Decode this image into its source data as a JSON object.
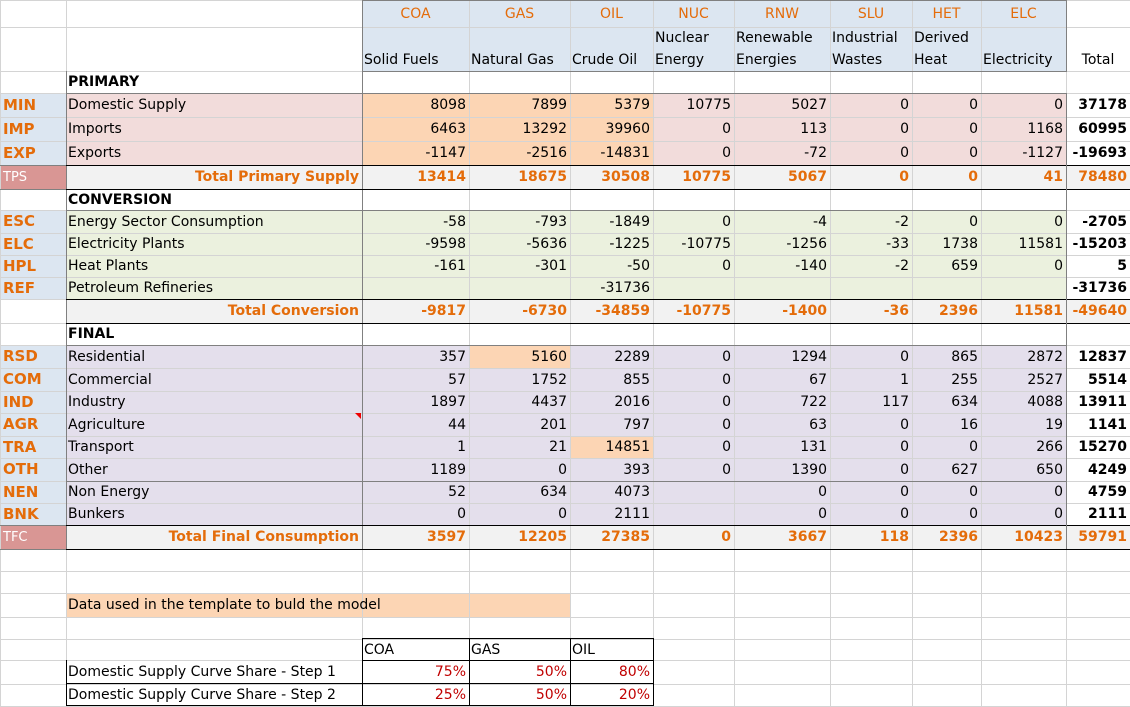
{
  "colors": {
    "header_blue": "#dce6f1",
    "primary_pink": "#f2dcdb",
    "conversion_green": "#ebf1de",
    "final_purple": "#e4dfec",
    "highlight_orange": "#fcd5b4",
    "total_row_gray": "#f2f2f2",
    "code_orange": "#e46c0a",
    "total_code_red": "#d99694"
  },
  "header": {
    "codes": [
      "COA",
      "GAS",
      "OIL",
      "NUC",
      "RNW",
      "SLU",
      "HET",
      "ELC"
    ],
    "names_line1": [
      "",
      "",
      "",
      "Nuclear",
      "Renewable",
      "Industrial",
      "Derived",
      ""
    ],
    "names_line2": [
      "Solid Fuels",
      "Natural Gas",
      "Crude Oil",
      "Energy",
      "Energies",
      "Wastes",
      "Heat",
      "Electricity"
    ],
    "total": "Total"
  },
  "sections": {
    "primary": "PRIMARY",
    "conversion": "CONVERSION",
    "final": "FINAL"
  },
  "rows": {
    "min": {
      "code": "MIN",
      "label": "Domestic Supply",
      "values": [
        "8098",
        "7899",
        "5379",
        "10775",
        "5027",
        "0",
        "0",
        "0"
      ],
      "total": "37178"
    },
    "imp": {
      "code": "IMP",
      "label": "Imports",
      "values": [
        "6463",
        "13292",
        "39960",
        "0",
        "113",
        "0",
        "0",
        "1168"
      ],
      "total": "60995"
    },
    "exp": {
      "code": "EXP",
      "label": "Exports",
      "values": [
        "-1147",
        "-2516",
        "-14831",
        "0",
        "-72",
        "0",
        "0",
        "-1127"
      ],
      "total": "-19693"
    },
    "tps": {
      "code": "TPS",
      "label": "Total Primary Supply",
      "values": [
        "13414",
        "18675",
        "30508",
        "10775",
        "5067",
        "0",
        "0",
        "41"
      ],
      "total": "78480"
    },
    "esc": {
      "code": "ESC",
      "label": "Energy Sector Consumption",
      "values": [
        "-58",
        "-793",
        "-1849",
        "0",
        "-4",
        "-2",
        "0",
        "0"
      ],
      "total": "-2705"
    },
    "elc": {
      "code": "ELC",
      "label": "Electricity Plants",
      "values": [
        "-9598",
        "-5636",
        "-1225",
        "-10775",
        "-1256",
        "-33",
        "1738",
        "11581"
      ],
      "total": "-15203"
    },
    "hpl": {
      "code": "HPL",
      "label": "Heat Plants",
      "values": [
        "-161",
        "-301",
        "-50",
        "0",
        "-140",
        "-2",
        "659",
        "0"
      ],
      "total": "5"
    },
    "ref": {
      "code": "REF",
      "label": "Petroleum Refineries",
      "values": [
        "",
        "",
        "-31736",
        "",
        "",
        "",
        "",
        ""
      ],
      "total": "-31736"
    },
    "tcv": {
      "code": "",
      "label": "Total Conversion",
      "values": [
        "-9817",
        "-6730",
        "-34859",
        "-10775",
        "-1400",
        "-36",
        "2396",
        "11581"
      ],
      "total": "-49640"
    },
    "rsd": {
      "code": "RSD",
      "label": "Residential",
      "values": [
        "357",
        "5160",
        "2289",
        "0",
        "1294",
        "0",
        "865",
        "2872"
      ],
      "total": "12837"
    },
    "com": {
      "code": "COM",
      "label": "Commercial",
      "values": [
        "57",
        "1752",
        "855",
        "0",
        "67",
        "1",
        "255",
        "2527"
      ],
      "total": "5514"
    },
    "ind": {
      "code": "IND",
      "label": "Industry",
      "values": [
        "1897",
        "4437",
        "2016",
        "0",
        "722",
        "117",
        "634",
        "4088"
      ],
      "total": "13911"
    },
    "agr": {
      "code": "AGR",
      "label": "Agriculture",
      "values": [
        "44",
        "201",
        "797",
        "0",
        "63",
        "0",
        "16",
        "19"
      ],
      "total": "1141"
    },
    "tra": {
      "code": "TRA",
      "label": "Transport",
      "values": [
        "1",
        "21",
        "14851",
        "0",
        "131",
        "0",
        "0",
        "266"
      ],
      "total": "15270"
    },
    "oth": {
      "code": "OTH",
      "label": "Other",
      "values": [
        "1189",
        "0",
        "393",
        "0",
        "1390",
        "0",
        "627",
        "650"
      ],
      "total": "4249"
    },
    "nen": {
      "code": "NEN",
      "label": "Non Energy",
      "values": [
        "52",
        "634",
        "4073",
        "",
        "0",
        "0",
        "0",
        "0"
      ],
      "total": "4759"
    },
    "bnk": {
      "code": "BNK",
      "label": "Bunkers",
      "values": [
        "0",
        "0",
        "2111",
        "",
        "0",
        "0",
        "0",
        "0"
      ],
      "total": "2111"
    },
    "tfc": {
      "code": "TFC",
      "label": "Total Final Consumption",
      "values": [
        "3597",
        "12205",
        "27385",
        "0",
        "3667",
        "118",
        "2396",
        "10423"
      ],
      "total": "59791"
    }
  },
  "note": "Data used in the template to buld the model",
  "curve": {
    "cols": [
      "COA",
      "GAS",
      "OIL"
    ],
    "step1": {
      "label": "Domestic Supply Curve Share - Step 1",
      "values": [
        "75%",
        "50%",
        "80%"
      ]
    },
    "step2": {
      "label": "Domestic Supply Curve Share - Step 2",
      "values": [
        "25%",
        "50%",
        "20%"
      ]
    }
  }
}
